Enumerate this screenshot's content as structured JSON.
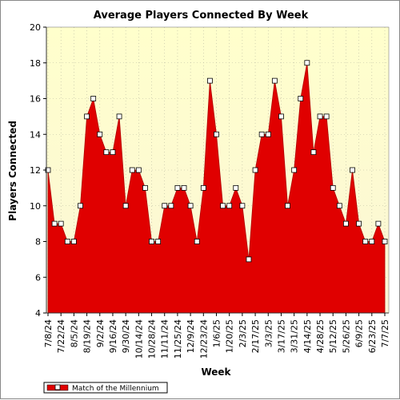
{
  "chart_data": {
    "type": "area",
    "title": "Average Players Connected By Week",
    "xlabel": "Week",
    "ylabel": "Players Connected",
    "ylim": [
      4,
      20
    ],
    "yticks": [
      4,
      6,
      8,
      10,
      12,
      14,
      16,
      18,
      20
    ],
    "grid": true,
    "legend_position": "bottom-left",
    "x_tick_labels": [
      "7/8/24",
      "7/22/24",
      "8/5/24",
      "8/19/24",
      "9/2/24",
      "9/16/24",
      "9/30/24",
      "10/14/24",
      "10/28/24",
      "11/11/24",
      "11/25/24",
      "12/9/24",
      "12/23/24",
      "1/6/25",
      "1/20/25",
      "2/3/25",
      "2/17/25",
      "3/3/25",
      "3/17/25",
      "3/31/25",
      "4/14/25",
      "4/28/25",
      "5/12/25",
      "5/26/25",
      "6/9/25",
      "6/23/25",
      "7/7/25"
    ],
    "series": [
      {
        "name": "Match of the Millennium",
        "color": "#e00000",
        "values": [
          12,
          9,
          9,
          8,
          8,
          10,
          15,
          16,
          14,
          13,
          13,
          15,
          10,
          12,
          12,
          11,
          8,
          8,
          10,
          10,
          11,
          11,
          10,
          8,
          11,
          17,
          14,
          10,
          10,
          11,
          10,
          7,
          12,
          14,
          14,
          17,
          15,
          10,
          12,
          16,
          18,
          13,
          15,
          15,
          11,
          10,
          9,
          12,
          9,
          8,
          8,
          9,
          8
        ]
      }
    ]
  }
}
